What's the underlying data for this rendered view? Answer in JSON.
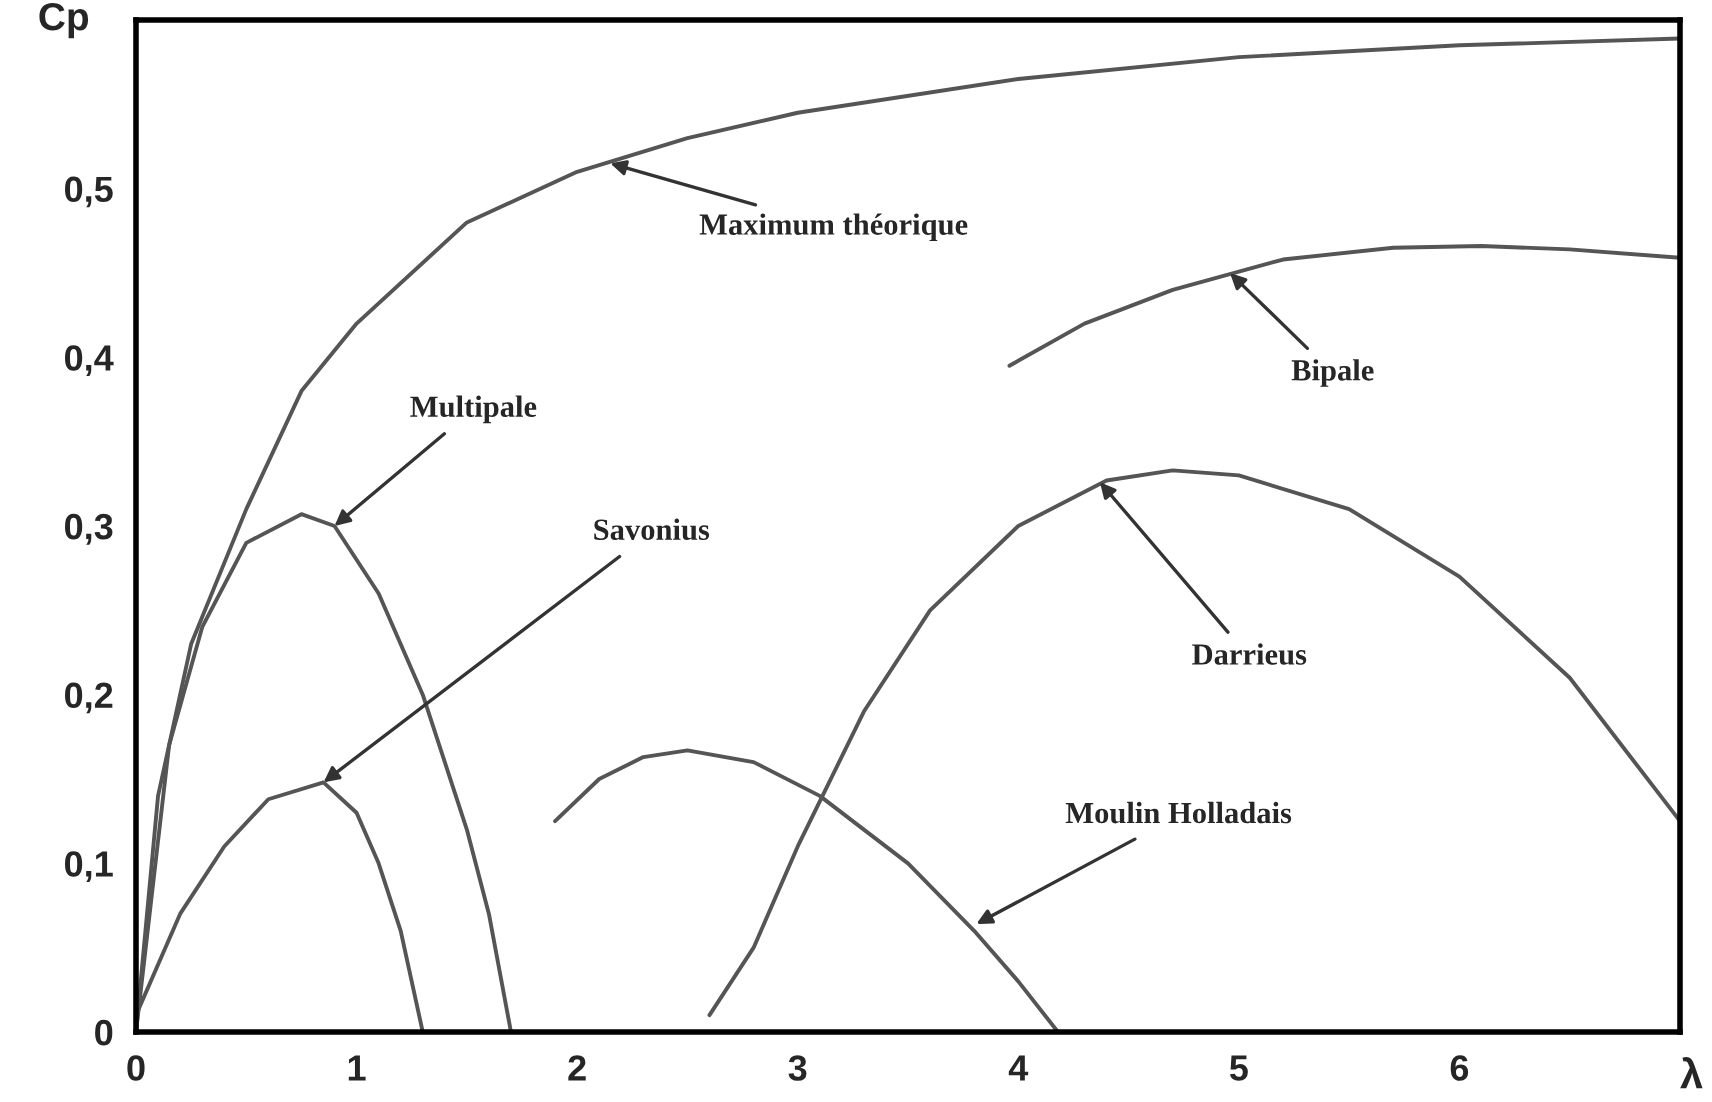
{
  "chart_data": {
    "type": "line",
    "xlabel": "λ",
    "ylabel": "Cp",
    "xlim": [
      0,
      7
    ],
    "xticks": [
      0,
      1,
      2,
      3,
      4,
      5,
      6
    ],
    "ylim": [
      0,
      0.6
    ],
    "yticks": [
      {
        "value": 0,
        "label": "0"
      },
      {
        "value": 0.1,
        "label": "0,1"
      },
      {
        "value": 0.2,
        "label": "0,2"
      },
      {
        "value": 0.3,
        "label": "0,3"
      },
      {
        "value": 0.4,
        "label": "0,4"
      },
      {
        "value": 0.5,
        "label": "0,5"
      }
    ],
    "grid": false,
    "legend": false,
    "marker": "none",
    "line_style": "solid",
    "series": [
      {
        "color": "#555555",
        "x": [
          0,
          0.1,
          0.25,
          0.5,
          0.75,
          1.0,
          1.5,
          2.0,
          2.5,
          3.0,
          4.0,
          5.0,
          6.0,
          7.0
        ],
        "values": [
          0,
          0.14,
          0.23,
          0.31,
          0.38,
          0.42,
          0.48,
          0.51,
          0.53,
          0.545,
          0.565,
          0.578,
          0.585,
          0.589
        ]
      },
      {
        "color": "#555555",
        "x": [
          0,
          0.15,
          0.3,
          0.5,
          0.75,
          0.9,
          1.1,
          1.3,
          1.5,
          1.6,
          1.7
        ],
        "values": [
          0,
          0.17,
          0.24,
          0.29,
          0.307,
          0.3,
          0.26,
          0.2,
          0.12,
          0.07,
          0
        ]
      },
      {
        "color": "#555555",
        "x": [
          0,
          0.2,
          0.4,
          0.6,
          0.85,
          1.0,
          1.1,
          1.2,
          1.3
        ],
        "values": [
          0.01,
          0.07,
          0.11,
          0.138,
          0.148,
          0.13,
          0.1,
          0.06,
          0
        ]
      },
      {
        "color": "#555555",
        "x": [
          1.9,
          2.1,
          2.3,
          2.5,
          2.8,
          3.1,
          3.5,
          3.8,
          4.0,
          4.18
        ],
        "values": [
          0.125,
          0.15,
          0.163,
          0.167,
          0.16,
          0.14,
          0.1,
          0.06,
          0.03,
          0
        ]
      },
      {
        "color": "#555555",
        "x": [
          2.6,
          2.8,
          3.0,
          3.3,
          3.6,
          4.0,
          4.4,
          4.7,
          5.0,
          5.5,
          6.0,
          6.5,
          7.0
        ],
        "values": [
          0.01,
          0.05,
          0.11,
          0.19,
          0.25,
          0.3,
          0.327,
          0.333,
          0.33,
          0.31,
          0.27,
          0.21,
          0.125
        ]
      },
      {
        "color": "#555555",
        "x": [
          3.96,
          4.3,
          4.7,
          5.2,
          5.7,
          6.1,
          6.5,
          7.0
        ],
        "values": [
          0.395,
          0.42,
          0.44,
          0.458,
          0.465,
          0.466,
          0.464,
          0.459
        ]
      }
    ],
    "annotations": [
      {
        "text": "Maximum théorique",
        "x": 2.15,
        "y": 0.515
      },
      {
        "text": "Bipale",
        "x": 4.96,
        "y": 0.45
      },
      {
        "text": "Multipale",
        "x": 0.9,
        "y": 0.3
      },
      {
        "text": "Savonius",
        "x": 0.85,
        "y": 0.148
      },
      {
        "text": "Darrieus",
        "x": 4.37,
        "y": 0.326
      },
      {
        "text": "Moulin Holladais",
        "x": 3.81,
        "y": 0.064
      }
    ]
  }
}
